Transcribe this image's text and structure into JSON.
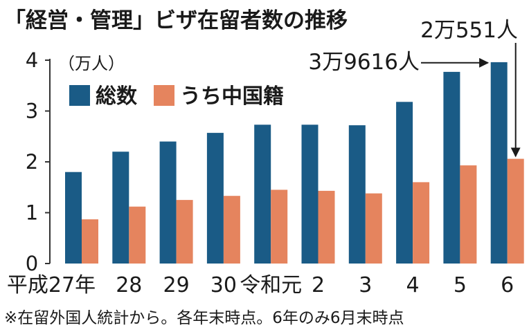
{
  "chart_data": {
    "type": "bar",
    "title": "「経営・管理」ビザ在留者数の推移",
    "ylabel": "（万人）",
    "ylim": [
      0,
      4
    ],
    "yticks": [
      "0",
      "1",
      "2",
      "3",
      "4"
    ],
    "categories": [
      "平成27年",
      "28",
      "29",
      "30",
      "令和元",
      "2",
      "3",
      "4",
      "5",
      "6"
    ],
    "series": [
      {
        "name": "総数",
        "color": "#1a5b86",
        "values": [
          1.8,
          2.2,
          2.4,
          2.57,
          2.73,
          2.73,
          2.72,
          3.18,
          3.77,
          3.96
        ]
      },
      {
        "name": "うち中国籍",
        "color": "#e5845e",
        "values": [
          0.87,
          1.12,
          1.25,
          1.33,
          1.45,
          1.43,
          1.38,
          1.6,
          1.93,
          2.06
        ]
      }
    ],
    "legend": "top-left",
    "annotations": [
      {
        "text": "2万551人",
        "series": 1,
        "index": 9,
        "value": 2.0551
      },
      {
        "text": "3万9616人",
        "series": 0,
        "index": 9,
        "value": 3.9616
      }
    ],
    "note": "※在留外国人統計から。各年末時点。6年のみ6月末時点"
  },
  "colors": {
    "total": "#1a5b86",
    "china": "#e5845e",
    "axis": "#333333"
  }
}
